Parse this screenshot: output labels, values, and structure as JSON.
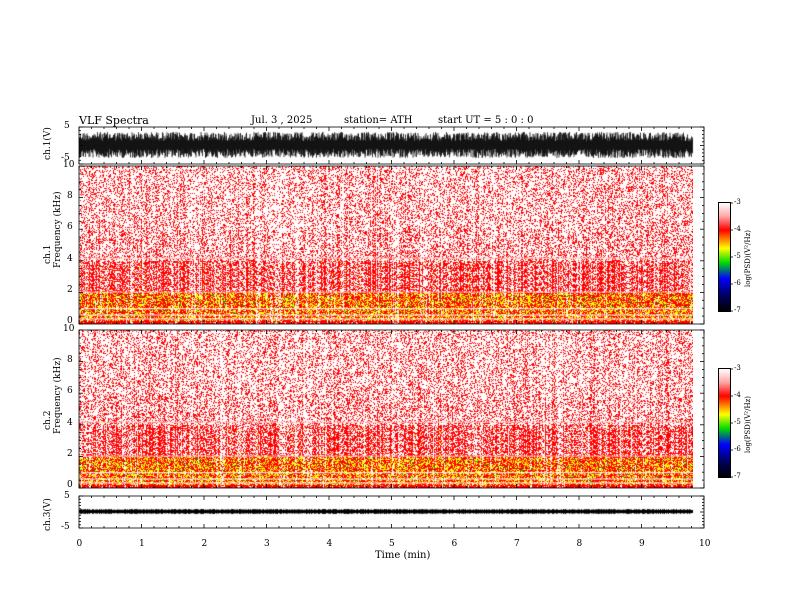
{
  "header": {
    "title": "VLF  Spectra",
    "date": "Jul.  3  , 2025",
    "station": "station= ATH",
    "start": "start  UT  =    5  : 0   : 0"
  },
  "chart_data": [
    {
      "type": "line",
      "name": "ch1-waveform",
      "ylabel": "ch.1(V)",
      "ylim": [
        -5,
        5
      ],
      "yticks": [
        "5",
        "-5"
      ],
      "xlim": [
        0,
        10
      ]
    },
    {
      "type": "heatmap",
      "name": "ch1-spectrogram",
      "ylabel_top": "ch.1",
      "ylabel": "Frequency  (kHz)",
      "ylim": [
        0,
        10
      ],
      "yticks": [
        "10",
        "8",
        "6",
        "4",
        "2",
        "0"
      ],
      "xlim": [
        0,
        9.82
      ],
      "colorbar": {
        "label": "log(PSD)(V²/Hz)",
        "range": [
          -7,
          -3
        ],
        "ticks": [
          "-3",
          "-4",
          "-5",
          "-6",
          "-7"
        ]
      }
    },
    {
      "type": "heatmap",
      "name": "ch2-spectrogram",
      "ylabel_top": "ch.2",
      "ylabel": "Frequency  (kHz)",
      "ylim": [
        0,
        10
      ],
      "yticks": [
        "10",
        "8",
        "6",
        "4",
        "2",
        "0"
      ],
      "xlim": [
        0,
        9.82
      ],
      "colorbar": {
        "label": "log(PSD)(V²/Hz)",
        "range": [
          -7,
          -3
        ],
        "ticks": [
          "-3",
          "-4",
          "-5",
          "-6",
          "-7"
        ]
      }
    },
    {
      "type": "line",
      "name": "ch3-waveform",
      "ylabel": "ch.3(V)",
      "ylim": [
        -5,
        5
      ],
      "yticks": [
        "5",
        "-5"
      ],
      "xlim": [
        0,
        10
      ],
      "xlabel": "Time  (min)",
      "xticks": [
        "0",
        "1",
        "2",
        "3",
        "4",
        "5",
        "6",
        "7",
        "8",
        "9",
        "10"
      ]
    }
  ],
  "colors": {
    "red": "#ff0000",
    "yellow": "#ffff00",
    "green": "#00cc00",
    "blue": "#0000ff",
    "black": "#000000"
  }
}
